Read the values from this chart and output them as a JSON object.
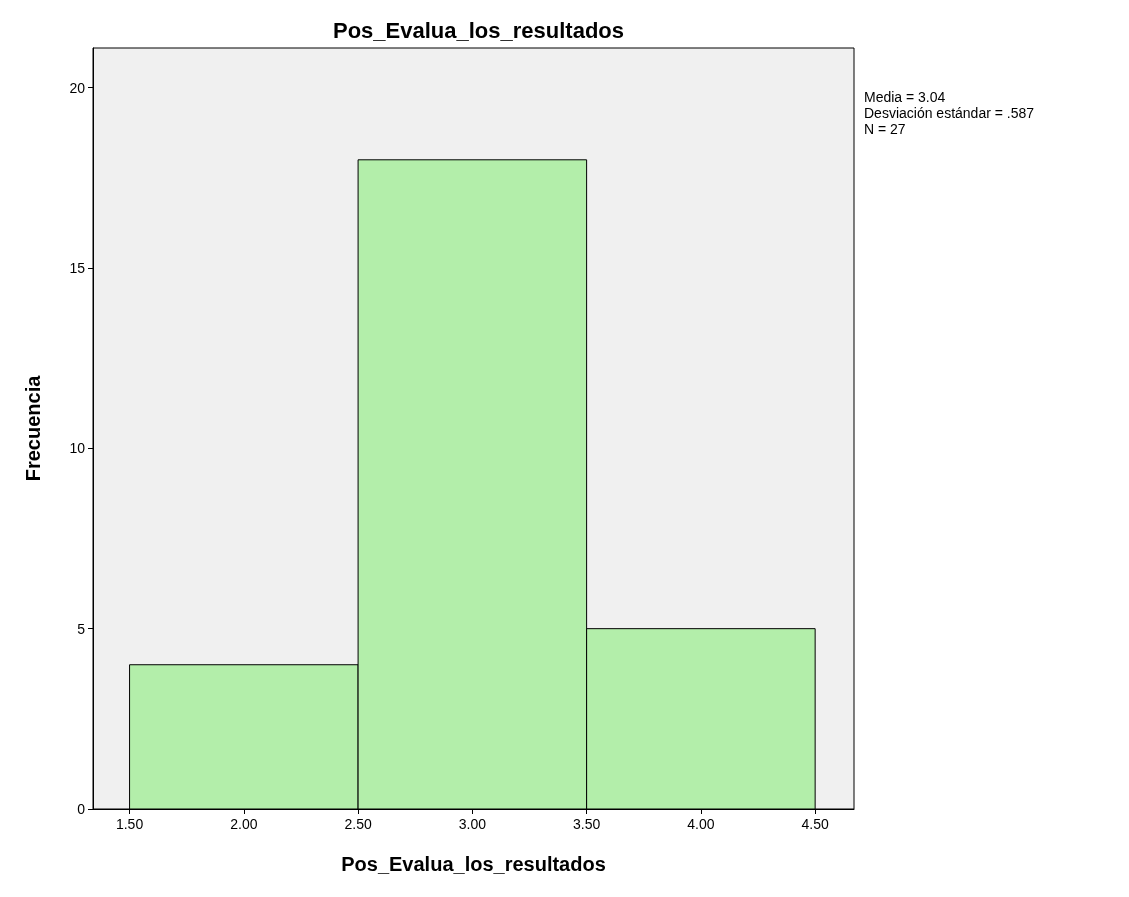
{
  "chart_data": {
    "type": "histogram",
    "title": "Pos_Evalua_los_resultados",
    "xlabel": "Pos_Evalua_los_resultados",
    "ylabel": "Frecuencia",
    "bins": [
      1.5,
      2.5,
      3.5,
      4.5
    ],
    "values": [
      4,
      18,
      5
    ],
    "color": "#b3eeaa",
    "xlim": [
      1.34,
      4.67
    ],
    "xticks": [
      {
        "value": 1.5,
        "label": "1.50"
      },
      {
        "value": 2,
        "label": "2.00"
      },
      {
        "value": 2.5,
        "label": "2.50"
      },
      {
        "value": 3,
        "label": "3.00"
      },
      {
        "value": 3.5,
        "label": "3.50"
      },
      {
        "value": 4,
        "label": "4.00"
      },
      {
        "value": 4.5,
        "label": "4.50"
      }
    ],
    "ylim": [
      0,
      21.1
    ],
    "yticks": [
      0,
      5,
      10,
      15,
      20
    ],
    "grid": false,
    "annotations": [
      "Media = 3.04",
      "Desviación estándar = .587",
      "N = 27"
    ]
  }
}
